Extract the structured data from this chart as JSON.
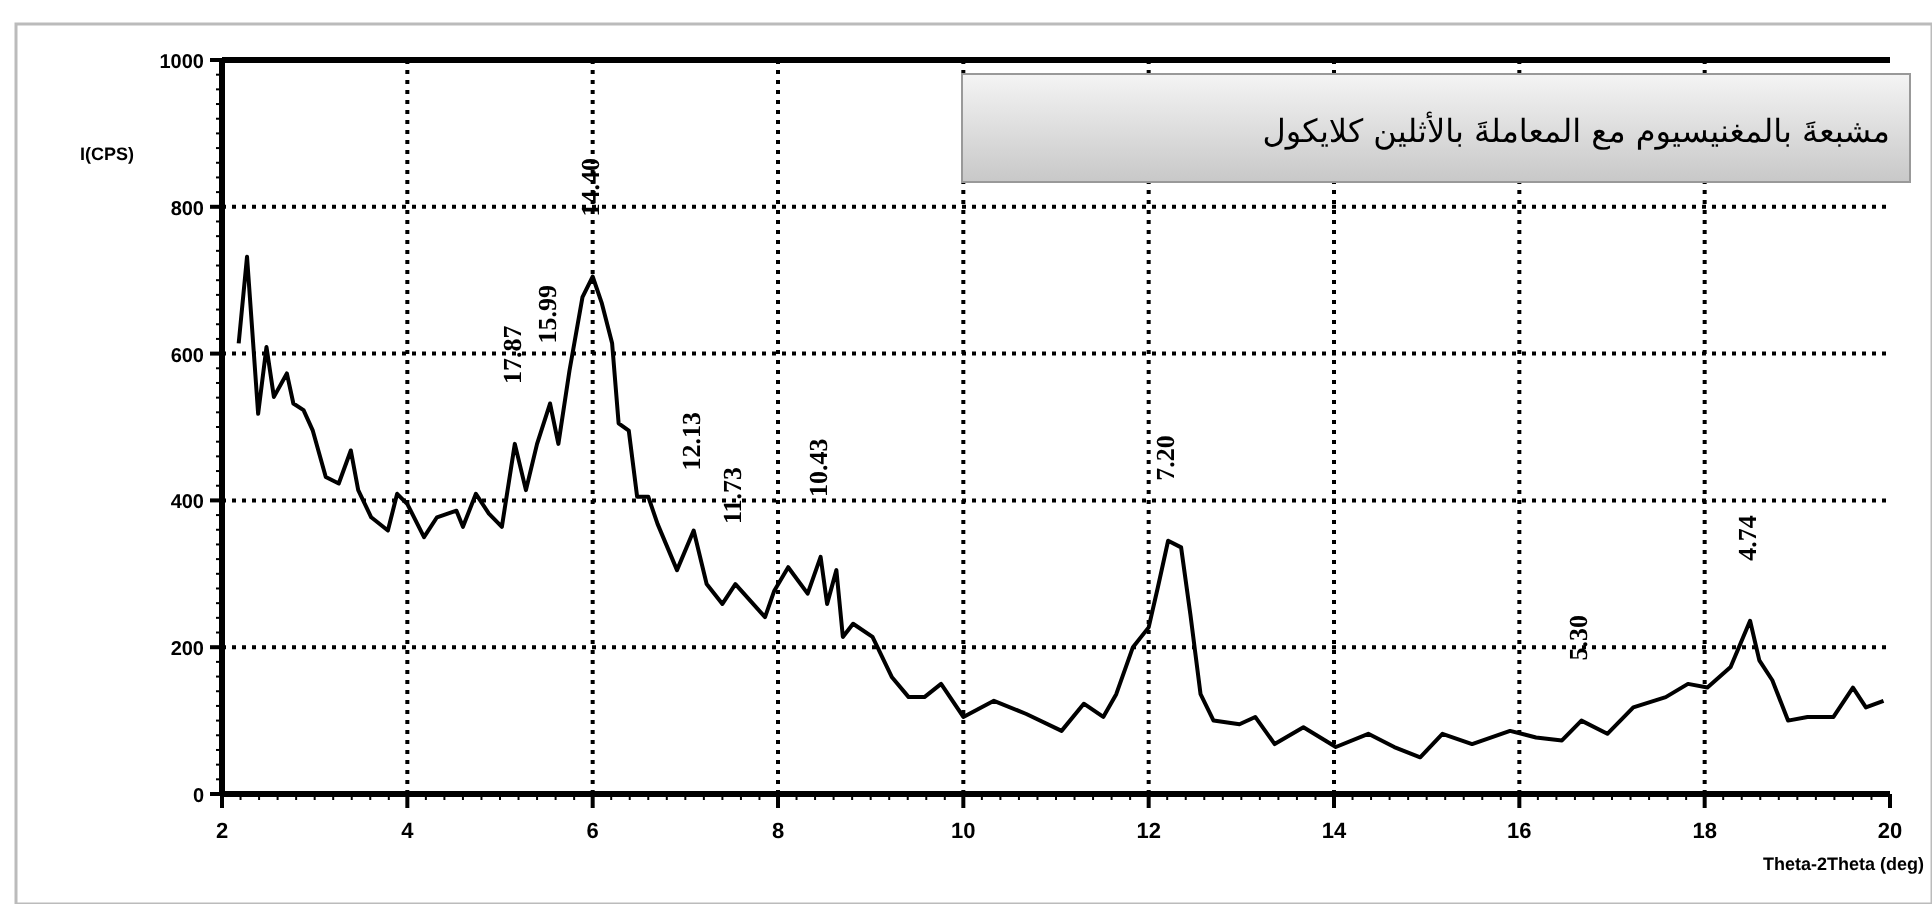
{
  "chart_data": {
    "type": "line",
    "title": "مشبعةَ بالمغنيسيوم مع المعاملةَ بالأثلين كلايكول",
    "xlabel": "Theta-2Theta (deg)",
    "ylabel": "I(CPS)",
    "xlim": [
      2,
      20
    ],
    "xticks": [
      2,
      4,
      6,
      8,
      10,
      12,
      14,
      16,
      18,
      20
    ],
    "ylim": [
      0,
      1000
    ],
    "yticks": [
      0,
      200,
      400,
      600,
      800,
      1000
    ],
    "grid": true,
    "marker": "none",
    "line_style": "solid",
    "series": [
      {
        "color": "#000000",
        "x": [
          2.18,
          2.27,
          2.39,
          2.48,
          2.56,
          2.7,
          2.77,
          2.88,
          2.98,
          3.12,
          3.26,
          3.39,
          3.47,
          3.61,
          3.79,
          3.89,
          4.0,
          4.18,
          4.32,
          4.53,
          4.6,
          4.74,
          4.88,
          5.02,
          5.16,
          5.28,
          5.4,
          5.54,
          5.63,
          5.75,
          5.89,
          6.0,
          6.1,
          6.21,
          6.28,
          6.39,
          6.48,
          6.6,
          6.7,
          6.91,
          7.09,
          7.23,
          7.4,
          7.54,
          7.86,
          7.96,
          8.11,
          8.32,
          8.46,
          8.53,
          8.63,
          8.7,
          8.81,
          9.02,
          9.23,
          9.41,
          9.58,
          9.76,
          10.0,
          10.33,
          10.68,
          11.06,
          11.3,
          11.51,
          11.65,
          11.83,
          12.0,
          12.1,
          12.21,
          12.35,
          12.45,
          12.56,
          12.7,
          12.98,
          13.15,
          13.36,
          13.67,
          14.02,
          14.37,
          14.65,
          14.93,
          15.17,
          15.49,
          15.9,
          16.18,
          16.46,
          16.67,
          16.95,
          17.23,
          17.58,
          17.82,
          18.03,
          18.28,
          18.49,
          18.59,
          18.73,
          18.9,
          19.11,
          19.39,
          19.6,
          19.74,
          19.93
        ],
        "values": [
          614,
          732,
          518,
          609,
          541,
          573,
          532,
          523,
          495,
          432,
          423,
          468,
          414,
          377,
          359,
          409,
          395,
          350,
          377,
          386,
          364,
          409,
          382,
          364,
          477,
          414,
          477,
          532,
          477,
          577,
          677,
          705,
          668,
          614,
          505,
          495,
          405,
          405,
          368,
          305,
          359,
          286,
          259,
          286,
          241,
          277,
          309,
          273,
          323,
          259,
          305,
          214,
          232,
          214,
          159,
          132,
          132,
          150,
          105,
          127,
          109,
          86,
          123,
          105,
          136,
          200,
          227,
          282,
          345,
          336,
          245,
          136,
          100,
          95,
          105,
          68,
          91,
          64,
          82,
          64,
          50,
          82,
          68,
          86,
          77,
          73,
          100,
          82,
          118,
          132,
          150,
          145,
          173,
          236,
          182,
          155,
          100,
          105,
          105,
          145,
          118,
          127
        ]
      }
    ],
    "annotations": [
      {
        "text": "15.99",
        "x": 5.54,
        "y": 532
      },
      {
        "text": "14.40",
        "x": 6.0,
        "y": 705
      },
      {
        "text": "17.87",
        "x": 5.16,
        "y": 477
      },
      {
        "text": "12.13",
        "x": 7.09,
        "y": 359
      },
      {
        "text": "11.73",
        "x": 7.54,
        "y": 286
      },
      {
        "text": "10.43",
        "x": 8.46,
        "y": 323
      },
      {
        "text": "7.20",
        "x": 12.21,
        "y": 345
      },
      {
        "text": "5.30",
        "x": 16.67,
        "y": 100
      },
      {
        "text": "4.74",
        "x": 18.49,
        "y": 236
      }
    ]
  }
}
